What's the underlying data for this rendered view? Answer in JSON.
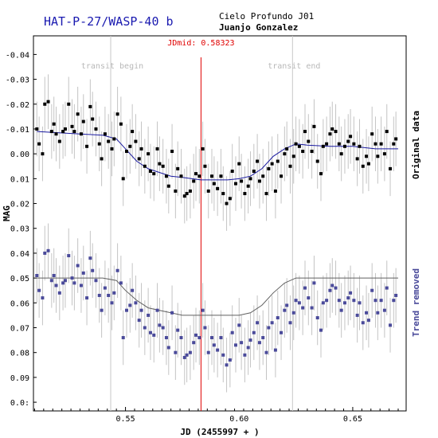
{
  "header": {
    "title": "HAT-P-27/WASP-40 b",
    "observatory": "Cielo Profundo J01",
    "observer": "Juanjo Gonzalez"
  },
  "chart_data": {
    "type": "scatter",
    "xlabel": "JD (2455997 + )",
    "ylabel": "MAG",
    "xlim": [
      0.5095,
      0.6735
    ],
    "ylim": [
      -0.0475,
      0.1035
    ],
    "y_inverted": true,
    "x_ticks": [
      0.55,
      0.6,
      0.65
    ],
    "x_tick_labels": [
      "0.55",
      "0.60",
      "0.65"
    ],
    "y_ticks": [
      -0.04,
      -0.03,
      -0.02,
      -0.01,
      0.0,
      0.01,
      0.02,
      0.03,
      0.04,
      0.05,
      0.06,
      0.07,
      0.08,
      0.09,
      0.1
    ],
    "y_tick_labels": [
      "-0.04",
      "-0.03",
      "-0.02",
      "-0.01",
      "0.00",
      "0.01",
      "0.02",
      "0.03",
      "0.04",
      "0.05",
      "0.06",
      "0.07",
      "0.08",
      "0.09",
      "0.0:"
    ],
    "markers": {
      "transit_begin": {
        "x": 0.5435,
        "label": "transit begin",
        "color": "#c8c8c8"
      },
      "transit_end": {
        "x": 0.6235,
        "label": "transit end",
        "color": "#c8c8c8"
      },
      "mid": {
        "x": 0.58323,
        "label": "JDmid: 0.58323",
        "color": "#e00000"
      }
    },
    "series": [
      {
        "name": "Original data",
        "color": "#000000",
        "model_color": "#1a1aa0",
        "error": 0.011,
        "model": {
          "x": [
            0.511,
            0.53,
            0.54,
            0.546,
            0.55,
            0.555,
            0.56,
            0.565,
            0.57,
            0.575,
            0.5832,
            0.59,
            0.595,
            0.6,
            0.605,
            0.61,
            0.615,
            0.62,
            0.625,
            0.63,
            0.64,
            0.65,
            0.66,
            0.67
          ],
          "y": [
            -0.009,
            -0.008,
            -0.0075,
            -0.006,
            -0.002,
            0.003,
            0.006,
            0.0075,
            0.009,
            0.0095,
            0.0105,
            0.0105,
            0.0105,
            0.01,
            0.009,
            0.006,
            0.001,
            -0.002,
            -0.004,
            -0.0035,
            -0.003,
            -0.003,
            -0.002,
            -0.002
          ]
        },
        "x": [
          0.511,
          0.512,
          0.5135,
          0.5145,
          0.516,
          0.5175,
          0.5185,
          0.5195,
          0.521,
          0.5225,
          0.5235,
          0.525,
          0.5265,
          0.5275,
          0.529,
          0.5305,
          0.5315,
          0.533,
          0.5345,
          0.5355,
          0.537,
          0.5385,
          0.5395,
          0.541,
          0.5425,
          0.544,
          0.545,
          0.5465,
          0.548,
          0.549,
          0.5505,
          0.552,
          0.553,
          0.5545,
          0.556,
          0.557,
          0.5585,
          0.56,
          0.561,
          0.5625,
          0.564,
          0.565,
          0.5665,
          0.568,
          0.569,
          0.5705,
          0.572,
          0.573,
          0.5745,
          0.576,
          0.577,
          0.5785,
          0.58,
          0.581,
          0.5825,
          0.584,
          0.585,
          0.5865,
          0.588,
          0.589,
          0.5905,
          0.592,
          0.593,
          0.5945,
          0.596,
          0.597,
          0.5985,
          0.6,
          0.601,
          0.6025,
          0.604,
          0.605,
          0.6065,
          0.608,
          0.609,
          0.6105,
          0.612,
          0.613,
          0.6145,
          0.616,
          0.617,
          0.6185,
          0.62,
          0.621,
          0.6225,
          0.624,
          0.625,
          0.6265,
          0.628,
          0.629,
          0.6305,
          0.632,
          0.633,
          0.6345,
          0.636,
          0.637,
          0.6385,
          0.64,
          0.641,
          0.6425,
          0.644,
          0.645,
          0.6465,
          0.648,
          0.649,
          0.6505,
          0.652,
          0.653,
          0.6545,
          0.656,
          0.657,
          0.6585,
          0.66,
          0.661,
          0.6625,
          0.664,
          0.665,
          0.6665,
          0.668,
          0.669
        ],
        "y": [
          -0.01,
          -0.004,
          0.0,
          -0.02,
          -0.021,
          -0.009,
          -0.012,
          -0.008,
          -0.005,
          -0.009,
          -0.01,
          -0.02,
          -0.011,
          -0.009,
          -0.016,
          -0.008,
          -0.013,
          -0.003,
          -0.019,
          -0.014,
          -0.01,
          -0.004,
          0.002,
          -0.008,
          -0.005,
          -0.002,
          -0.006,
          -0.016,
          -0.012,
          0.01,
          -0.001,
          -0.003,
          -0.009,
          -0.005,
          0.002,
          -0.002,
          0.005,
          0.0,
          0.007,
          0.008,
          -0.002,
          0.004,
          0.005,
          0.009,
          0.013,
          -0.001,
          0.015,
          0.006,
          0.009,
          0.017,
          0.016,
          0.015,
          0.011,
          0.008,
          0.009,
          -0.002,
          0.005,
          0.015,
          0.009,
          0.012,
          0.014,
          0.009,
          0.016,
          0.02,
          0.018,
          0.007,
          0.012,
          0.004,
          0.011,
          0.016,
          0.013,
          0.01,
          0.007,
          0.003,
          0.011,
          0.009,
          0.016,
          0.006,
          0.004,
          0.015,
          0.003,
          0.009,
          0.0,
          -0.002,
          0.005,
          0.001,
          -0.004,
          -0.003,
          -0.001,
          -0.009,
          -0.005,
          -0.001,
          -0.011,
          0.003,
          0.008,
          -0.003,
          -0.004,
          -0.008,
          -0.01,
          -0.009,
          -0.004,
          0.0,
          -0.003,
          -0.005,
          -0.007,
          -0.004,
          0.002,
          -0.003,
          0.005,
          0.001,
          0.004,
          -0.008,
          -0.004,
          0.001,
          -0.004,
          0.0,
          -0.009,
          0.006,
          -0.004,
          -0.006
        ]
      },
      {
        "name": "Trend removed",
        "color": "#4a4a9a",
        "model_color": "#606060",
        "error": 0.011,
        "model": {
          "x": [
            0.511,
            0.53,
            0.54,
            0.546,
            0.55,
            0.555,
            0.56,
            0.565,
            0.57,
            0.575,
            0.5832,
            0.59,
            0.595,
            0.6,
            0.605,
            0.61,
            0.615,
            0.62,
            0.625,
            0.63,
            0.64,
            0.65,
            0.66,
            0.67
          ],
          "y": [
            0.05,
            0.05,
            0.05,
            0.051,
            0.055,
            0.059,
            0.062,
            0.063,
            0.064,
            0.065,
            0.065,
            0.065,
            0.065,
            0.065,
            0.064,
            0.061,
            0.056,
            0.052,
            0.05,
            0.05,
            0.05,
            0.05,
            0.05,
            0.05
          ]
        },
        "x": [
          0.511,
          0.512,
          0.5135,
          0.5145,
          0.516,
          0.5175,
          0.5185,
          0.5195,
          0.521,
          0.5225,
          0.5235,
          0.525,
          0.5265,
          0.5275,
          0.529,
          0.5305,
          0.5315,
          0.533,
          0.5345,
          0.5355,
          0.537,
          0.5385,
          0.5395,
          0.541,
          0.5425,
          0.544,
          0.545,
          0.5465,
          0.548,
          0.549,
          0.5505,
          0.552,
          0.553,
          0.5545,
          0.556,
          0.557,
          0.5585,
          0.56,
          0.561,
          0.5625,
          0.564,
          0.565,
          0.5665,
          0.568,
          0.569,
          0.5705,
          0.572,
          0.573,
          0.5745,
          0.576,
          0.577,
          0.5785,
          0.58,
          0.581,
          0.5825,
          0.584,
          0.585,
          0.5865,
          0.588,
          0.589,
          0.5905,
          0.592,
          0.593,
          0.5945,
          0.596,
          0.597,
          0.5985,
          0.6,
          0.601,
          0.6025,
          0.604,
          0.605,
          0.6065,
          0.608,
          0.609,
          0.6105,
          0.612,
          0.613,
          0.6145,
          0.616,
          0.617,
          0.6185,
          0.62,
          0.621,
          0.6225,
          0.624,
          0.625,
          0.6265,
          0.628,
          0.629,
          0.6305,
          0.632,
          0.633,
          0.6345,
          0.636,
          0.637,
          0.6385,
          0.64,
          0.641,
          0.6425,
          0.644,
          0.645,
          0.6465,
          0.648,
          0.649,
          0.6505,
          0.652,
          0.653,
          0.6545,
          0.656,
          0.657,
          0.6585,
          0.66,
          0.661,
          0.6625,
          0.664,
          0.665,
          0.6665,
          0.668,
          0.669
        ],
        "y": [
          0.049,
          0.055,
          0.058,
          0.04,
          0.039,
          0.051,
          0.049,
          0.053,
          0.056,
          0.052,
          0.051,
          0.041,
          0.05,
          0.052,
          0.045,
          0.053,
          0.048,
          0.058,
          0.042,
          0.047,
          0.051,
          0.057,
          0.063,
          0.054,
          0.057,
          0.06,
          0.056,
          0.047,
          0.052,
          0.074,
          0.063,
          0.061,
          0.055,
          0.06,
          0.067,
          0.063,
          0.07,
          0.065,
          0.072,
          0.073,
          0.063,
          0.069,
          0.07,
          0.074,
          0.078,
          0.064,
          0.08,
          0.071,
          0.074,
          0.082,
          0.081,
          0.08,
          0.076,
          0.073,
          0.074,
          0.063,
          0.07,
          0.08,
          0.074,
          0.077,
          0.079,
          0.074,
          0.081,
          0.085,
          0.083,
          0.072,
          0.077,
          0.069,
          0.076,
          0.081,
          0.078,
          0.075,
          0.072,
          0.068,
          0.076,
          0.074,
          0.08,
          0.07,
          0.068,
          0.079,
          0.066,
          0.072,
          0.063,
          0.061,
          0.068,
          0.064,
          0.059,
          0.06,
          0.062,
          0.054,
          0.058,
          0.062,
          0.052,
          0.066,
          0.071,
          0.06,
          0.059,
          0.055,
          0.053,
          0.054,
          0.059,
          0.063,
          0.06,
          0.058,
          0.056,
          0.059,
          0.065,
          0.06,
          0.068,
          0.064,
          0.067,
          0.055,
          0.059,
          0.064,
          0.059,
          0.063,
          0.054,
          0.069,
          0.059,
          0.057
        ]
      }
    ]
  }
}
